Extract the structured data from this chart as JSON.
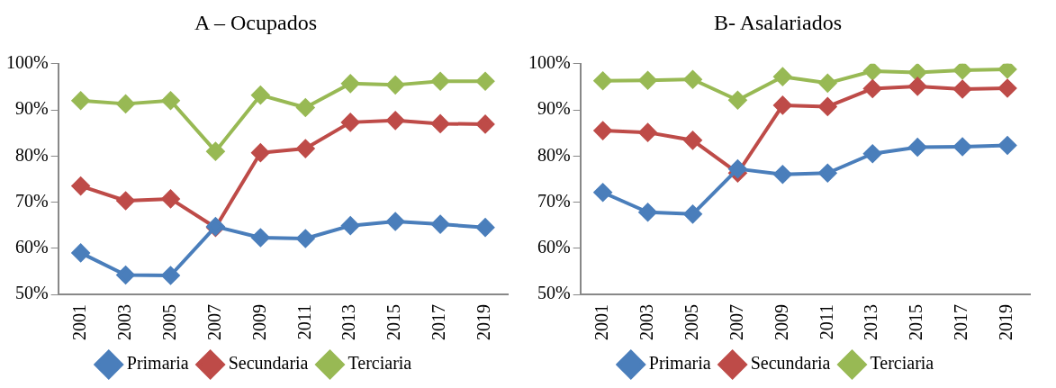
{
  "chart_data": [
    {
      "type": "line",
      "title": "A – Ocupados",
      "categories": [
        "2001",
        "2003",
        "2005",
        "2007",
        "2009",
        "2011",
        "2013",
        "2015",
        "2017",
        "2019"
      ],
      "series": [
        {
          "name": "Primaria",
          "color": "#4a7ebb",
          "values": [
            59,
            54.2,
            54.1,
            64.7,
            62.3,
            62.1,
            64.9,
            65.8,
            65.2,
            64.5
          ]
        },
        {
          "name": "Secundaria",
          "color": "#be4b48",
          "values": [
            73.5,
            70.3,
            70.7,
            64.5,
            80.7,
            81.6,
            87.3,
            87.7,
            87.0,
            86.9
          ]
        },
        {
          "name": "Terciaria",
          "color": "#98b954",
          "values": [
            92,
            91.3,
            92,
            81,
            93.2,
            90.5,
            95.7,
            95.4,
            96.2,
            96.2
          ]
        }
      ],
      "ylim": [
        50,
        100
      ],
      "yticks": [
        {
          "value": 50,
          "label": "50%"
        },
        {
          "value": 60,
          "label": "60%"
        },
        {
          "value": 70,
          "label": "70%"
        },
        {
          "value": 80,
          "label": "80%"
        },
        {
          "value": 90,
          "label": "90%"
        },
        {
          "value": 100,
          "label": "100%"
        }
      ],
      "grid": false,
      "legend": "bottom",
      "marker": "diamond",
      "line_style": "solid"
    },
    {
      "type": "line",
      "title": "B- Asalariados",
      "categories": [
        "2001",
        "2003",
        "2005",
        "2007",
        "2009",
        "2011",
        "2013",
        "2015",
        "2017",
        "2019"
      ],
      "series": [
        {
          "name": "Primaria",
          "color": "#4a7ebb",
          "values": [
            72.1,
            67.8,
            67.4,
            77.2,
            76,
            76.3,
            80.5,
            81.9,
            82,
            82.3
          ]
        },
        {
          "name": "Secundaria",
          "color": "#be4b48",
          "values": [
            85.5,
            85.1,
            83.4,
            76.3,
            91,
            90.7,
            94.6,
            95.1,
            94.5,
            94.7
          ]
        },
        {
          "name": "Terciaria",
          "color": "#98b954",
          "values": [
            96.3,
            96.4,
            96.6,
            92.1,
            97.2,
            95.8,
            98.4,
            98.1,
            98.6,
            98.8
          ]
        }
      ],
      "ylim": [
        50,
        100
      ],
      "yticks": [
        {
          "value": 50,
          "label": "50%"
        },
        {
          "value": 60,
          "label": "60%"
        },
        {
          "value": 70,
          "label": "70%"
        },
        {
          "value": 80,
          "label": "80%"
        },
        {
          "value": 90,
          "label": "90%"
        },
        {
          "value": 100,
          "label": "100%"
        }
      ],
      "grid": false,
      "legend": "bottom",
      "marker": "diamond",
      "line_style": "solid"
    }
  ]
}
